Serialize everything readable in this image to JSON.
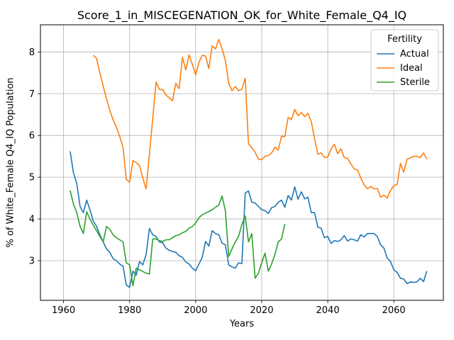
{
  "chart_data": {
    "type": "line",
    "title": "Score_1_in_MISCEGENATION_OK_for_White_Female_Q4_IQ",
    "xlabel": "Years",
    "ylabel": "% of White_Female Q4_IQ Population",
    "xlim": [
      1953,
      2075
    ],
    "ylim": [
      2.05,
      8.65
    ],
    "xticks": [
      1960,
      1980,
      2000,
      2020,
      2040,
      2060
    ],
    "yticks": [
      3,
      4,
      5,
      6,
      7,
      8
    ],
    "grid": true,
    "legend": {
      "title": "Fertility",
      "placement": "top-right"
    },
    "series": [
      {
        "name": "Actual",
        "color": "#1f77b4",
        "x": [
          1962,
          1963,
          1964,
          1965,
          1966,
          1967,
          1968,
          1969,
          1970,
          1971,
          1972,
          1973,
          1974,
          1975,
          1976,
          1977,
          1978,
          1979,
          1980,
          1981,
          1982,
          1983,
          1984,
          1985,
          1986,
          1987,
          1988,
          1989,
          1990,
          1991,
          1992,
          1993,
          1994,
          1995,
          1996,
          1997,
          1998,
          1999,
          2000,
          2001,
          2002,
          2003,
          2004,
          2005,
          2006,
          2007,
          2008,
          2009,
          2010,
          2011,
          2012,
          2013,
          2014,
          2015,
          2016,
          2017,
          2018,
          2019,
          2020,
          2021,
          2022,
          2023,
          2024,
          2025,
          2026,
          2027,
          2028,
          2029,
          2030,
          2031,
          2032,
          2033,
          2034,
          2035,
          2036,
          2037,
          2038,
          2039,
          2040,
          2041,
          2042,
          2043,
          2044,
          2045,
          2046,
          2047,
          2048,
          2049,
          2050,
          2051,
          2052,
          2053,
          2054,
          2055,
          2056,
          2057,
          2058,
          2059,
          2060,
          2061,
          2062,
          2063,
          2064,
          2065,
          2066,
          2067,
          2068,
          2069,
          2070
        ],
        "y": [
          5.62,
          5.1,
          4.85,
          4.3,
          4.15,
          4.45,
          4.22,
          3.95,
          3.82,
          3.62,
          3.45,
          3.28,
          3.2,
          3.05,
          3.0,
          2.92,
          2.87,
          2.42,
          2.36,
          2.75,
          2.65,
          2.98,
          2.9,
          3.15,
          3.77,
          3.62,
          3.58,
          3.45,
          3.43,
          3.3,
          3.25,
          3.22,
          3.2,
          3.12,
          3.08,
          2.97,
          2.92,
          2.82,
          2.76,
          2.92,
          3.08,
          3.46,
          3.35,
          3.72,
          3.65,
          3.62,
          3.42,
          3.38,
          2.9,
          2.85,
          2.82,
          2.95,
          2.93,
          4.62,
          4.67,
          4.4,
          4.38,
          4.3,
          4.22,
          4.2,
          4.13,
          4.27,
          4.3,
          4.4,
          4.45,
          4.28,
          4.56,
          4.45,
          4.77,
          4.47,
          4.65,
          4.48,
          4.52,
          4.15,
          4.15,
          3.8,
          3.78,
          3.55,
          3.58,
          3.41,
          3.48,
          3.46,
          3.5,
          3.6,
          3.47,
          3.52,
          3.5,
          3.47,
          3.62,
          3.57,
          3.65,
          3.65,
          3.65,
          3.58,
          3.38,
          3.3,
          3.06,
          2.98,
          2.78,
          2.72,
          2.58,
          2.56,
          2.45,
          2.49,
          2.48,
          2.49,
          2.58,
          2.5,
          2.75
        ]
      },
      {
        "name": "Ideal",
        "color": "#ff7f0e",
        "x": [
          1969,
          1970,
          1971,
          1972,
          1973,
          1974,
          1975,
          1976,
          1977,
          1978,
          1979,
          1980,
          1981,
          1982,
          1983,
          1984,
          1985,
          1986,
          1987,
          1988,
          1989,
          1990,
          1991,
          1992,
          1993,
          1994,
          1995,
          1996,
          1997,
          1998,
          1999,
          2000,
          2001,
          2002,
          2003,
          2004,
          2005,
          2006,
          2007,
          2008,
          2009,
          2010,
          2011,
          2012,
          2013,
          2014,
          2015,
          2016,
          2017,
          2018,
          2019,
          2020,
          2021,
          2022,
          2023,
          2024,
          2025,
          2026,
          2027,
          2028,
          2029,
          2030,
          2031,
          2032,
          2033,
          2034,
          2035,
          2036,
          2037,
          2038,
          2039,
          2040,
          2041,
          2042,
          2043,
          2044,
          2045,
          2046,
          2047,
          2048,
          2049,
          2050,
          2051,
          2052,
          2053,
          2054,
          2055,
          2056,
          2057,
          2058,
          2059,
          2060,
          2061,
          2062,
          2063,
          2064,
          2065,
          2066,
          2067,
          2068,
          2069,
          2070
        ],
        "y": [
          7.92,
          7.85,
          7.5,
          7.18,
          6.88,
          6.6,
          6.38,
          6.2,
          5.98,
          5.72,
          4.95,
          4.88,
          5.4,
          5.35,
          5.28,
          4.98,
          4.72,
          5.55,
          6.4,
          7.28,
          7.1,
          7.1,
          6.97,
          6.9,
          6.83,
          7.25,
          7.12,
          7.87,
          7.57,
          7.93,
          7.7,
          7.45,
          7.75,
          7.92,
          7.9,
          7.6,
          8.15,
          8.07,
          8.3,
          8.07,
          7.8,
          7.25,
          7.07,
          7.17,
          7.07,
          7.11,
          7.37,
          5.8,
          5.7,
          5.6,
          5.43,
          5.42,
          5.5,
          5.52,
          5.58,
          5.72,
          5.65,
          5.98,
          5.97,
          6.43,
          6.38,
          6.62,
          6.47,
          6.55,
          6.45,
          6.53,
          6.33,
          5.93,
          5.55,
          5.58,
          5.47,
          5.48,
          5.68,
          5.79,
          5.56,
          5.68,
          5.47,
          5.45,
          5.32,
          5.2,
          5.17,
          4.98,
          4.82,
          4.72,
          4.78,
          4.72,
          4.73,
          4.52,
          4.57,
          4.5,
          4.68,
          4.8,
          4.82,
          5.33,
          5.12,
          5.43,
          5.46,
          5.5,
          5.5,
          5.47,
          5.58,
          5.43
        ]
      },
      {
        "name": "Sterile",
        "color": "#2ca02c",
        "x": [
          1962,
          1963,
          1964,
          1965,
          1966,
          1967,
          1968,
          1969,
          1970,
          1971,
          1972,
          1973,
          1974,
          1975,
          1976,
          1977,
          1978,
          1979,
          1980,
          1981,
          1982,
          1983,
          1984,
          1985,
          1986,
          1987,
          1988,
          1989,
          1990,
          1991,
          1992,
          1993,
          1994,
          1995,
          1996,
          1997,
          1998,
          1999,
          2000,
          2001,
          2002,
          2003,
          2004,
          2005,
          2006,
          2007,
          2008,
          2009,
          2010,
          2011,
          2012,
          2013,
          2014,
          2015,
          2016,
          2017,
          2018,
          2019,
          2020,
          2021,
          2022,
          2023,
          2024,
          2025,
          2026,
          2027
        ],
        "y": [
          4.68,
          4.35,
          4.15,
          3.82,
          3.65,
          4.17,
          4.0,
          3.85,
          3.72,
          3.58,
          3.45,
          3.82,
          3.75,
          3.62,
          3.55,
          3.5,
          3.45,
          2.95,
          2.9,
          2.4,
          2.82,
          2.78,
          2.74,
          2.7,
          2.68,
          3.52,
          3.52,
          3.48,
          3.46,
          3.5,
          3.5,
          3.55,
          3.6,
          3.62,
          3.67,
          3.7,
          3.78,
          3.82,
          3.9,
          4.03,
          4.1,
          4.14,
          4.18,
          4.22,
          4.28,
          4.33,
          4.55,
          4.2,
          3.1,
          3.28,
          3.45,
          3.58,
          3.87,
          4.07,
          3.45,
          3.65,
          2.58,
          2.7,
          2.95,
          3.18,
          2.75,
          2.92,
          3.15,
          3.45,
          3.52,
          3.88
        ]
      }
    ]
  }
}
